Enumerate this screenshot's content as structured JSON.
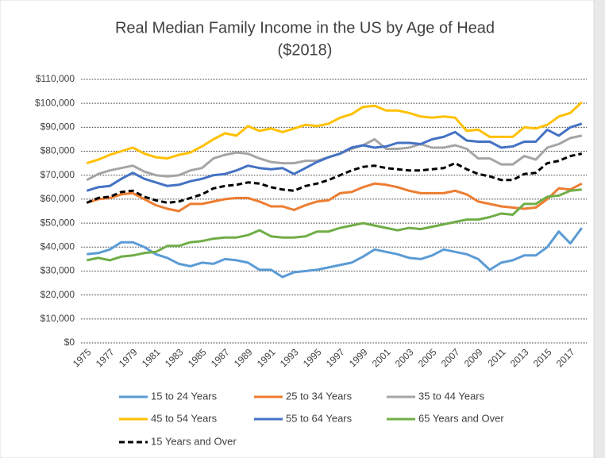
{
  "chart_data": {
    "type": "line",
    "title": "Real Median Family Income in the US by Age of Head",
    "subtitle": "($2018)",
    "categories": [
      "1975",
      null,
      "1977",
      null,
      "1979",
      null,
      "1981",
      null,
      "1983",
      null,
      "1985",
      null,
      "1987",
      null,
      "1989",
      null,
      "1991",
      null,
      "1993",
      null,
      "1995",
      null,
      "1997",
      null,
      "1999",
      null,
      "2001",
      null,
      "2003",
      null,
      "2005",
      null,
      "2007",
      null,
      "2009",
      null,
      "2011",
      null,
      "2013",
      null,
      "2015",
      null,
      "2017",
      null
    ],
    "ylim": [
      0,
      110000
    ],
    "yticks": [
      {
        "value": 0,
        "label": "$0"
      },
      {
        "value": 10000,
        "label": "$10,000"
      },
      {
        "value": 20000,
        "label": "$20,000"
      },
      {
        "value": 30000,
        "label": "$30,000"
      },
      {
        "value": 40000,
        "label": "$40,000"
      },
      {
        "value": 50000,
        "label": "$50,000"
      },
      {
        "value": 60000,
        "label": "$60,000"
      },
      {
        "value": 70000,
        "label": "$70,000"
      },
      {
        "value": 80000,
        "label": "$80,000"
      },
      {
        "value": 90000,
        "label": "$90,000"
      },
      {
        "value": 100000,
        "label": "$100,000"
      },
      {
        "value": 110000,
        "label": "$110,000"
      }
    ],
    "grid": true,
    "legend": "bottom",
    "series": [
      {
        "name": "15 to 24 Years",
        "color": "#5b9bd5",
        "values": [
          37000,
          37500,
          39000,
          42000,
          42000,
          40000,
          37000,
          35500,
          33000,
          32000,
          33500,
          33000,
          35000,
          34500,
          33500,
          30500,
          30500,
          27500,
          29500,
          30000,
          30500,
          31500,
          32500,
          33500,
          36000,
          39000,
          38000,
          37000,
          35500,
          35000,
          36500,
          39000,
          38000,
          37000,
          35000,
          30500,
          33500,
          34500,
          36500,
          36500,
          40000,
          46500,
          41500,
          48000
        ]
      },
      {
        "name": "25 to 34 Years",
        "color": "#ed7d31",
        "values": [
          58500,
          60000,
          60500,
          62000,
          62500,
          60000,
          57500,
          56000,
          55000,
          58000,
          58000,
          59000,
          60000,
          60500,
          60500,
          59000,
          57000,
          57000,
          55500,
          57500,
          59000,
          59500,
          62500,
          63000,
          65000,
          66500,
          66000,
          65000,
          63500,
          62500,
          62500,
          62500,
          63500,
          62000,
          59000,
          58000,
          57000,
          56500,
          56000,
          56500,
          60000,
          64500,
          64000,
          66500
        ]
      },
      {
        "name": "35 to 44 Years",
        "color": "#a5a5a5",
        "values": [
          68000,
          70500,
          72000,
          73000,
          74000,
          71500,
          70000,
          69500,
          70000,
          72000,
          73000,
          77000,
          78500,
          79500,
          79000,
          77000,
          75500,
          75000,
          75000,
          76000,
          76000,
          77500,
          79000,
          81000,
          82500,
          85000,
          81000,
          81000,
          81500,
          83000,
          81500,
          81500,
          82500,
          81000,
          77000,
          77000,
          74500,
          74500,
          78000,
          76500,
          81500,
          83000,
          85500,
          86500
        ]
      },
      {
        "name": "45 to 54 Years",
        "color": "#ffc000",
        "values": [
          75000,
          76500,
          78500,
          80000,
          81500,
          79000,
          77500,
          77000,
          78500,
          79500,
          82000,
          85000,
          87500,
          86500,
          90500,
          88500,
          89500,
          88000,
          89500,
          91000,
          90500,
          91500,
          94000,
          95500,
          98500,
          99000,
          97000,
          97000,
          96000,
          94500,
          94000,
          94500,
          94000,
          88500,
          89000,
          86000,
          86000,
          86000,
          90000,
          89500,
          91000,
          94500,
          96000,
          100500
        ]
      },
      {
        "name": "55 to 64 Years",
        "color": "#4472c4",
        "values": [
          63500,
          65000,
          65500,
          68500,
          71000,
          68500,
          67000,
          65500,
          66000,
          67500,
          68500,
          70000,
          70500,
          72000,
          74000,
          73000,
          72500,
          73000,
          70500,
          73000,
          75500,
          77500,
          79000,
          81500,
          82500,
          81500,
          82000,
          83500,
          83500,
          83000,
          85000,
          86000,
          88000,
          84500,
          84000,
          84000,
          81500,
          82000,
          84000,
          84000,
          89000,
          86500,
          90000,
          91500
        ]
      },
      {
        "name": "65 Years and Over",
        "color": "#70ad47",
        "values": [
          34500,
          35500,
          34500,
          36000,
          36500,
          37500,
          38000,
          40500,
          40500,
          42000,
          42500,
          43500,
          44000,
          44000,
          45000,
          47000,
          44500,
          44000,
          44000,
          44500,
          46500,
          46500,
          48000,
          49000,
          50000,
          49000,
          48000,
          47000,
          48000,
          47500,
          48500,
          49500,
          50500,
          51500,
          51500,
          52500,
          54000,
          53500,
          58000,
          58000,
          61000,
          61500,
          63500,
          64000
        ]
      },
      {
        "name": "15 Years and Over",
        "color": "#000000",
        "dashed": true,
        "values": [
          58500,
          60500,
          61000,
          63000,
          63500,
          61000,
          59500,
          58500,
          59000,
          60500,
          62000,
          64500,
          65500,
          66000,
          67000,
          66500,
          65000,
          64000,
          63500,
          65500,
          66500,
          68000,
          70000,
          72000,
          73500,
          74000,
          73000,
          72500,
          72000,
          72000,
          72500,
          73000,
          75000,
          72500,
          70500,
          69500,
          68000,
          68000,
          70500,
          71000,
          75000,
          76000,
          78000,
          79000
        ]
      }
    ]
  }
}
